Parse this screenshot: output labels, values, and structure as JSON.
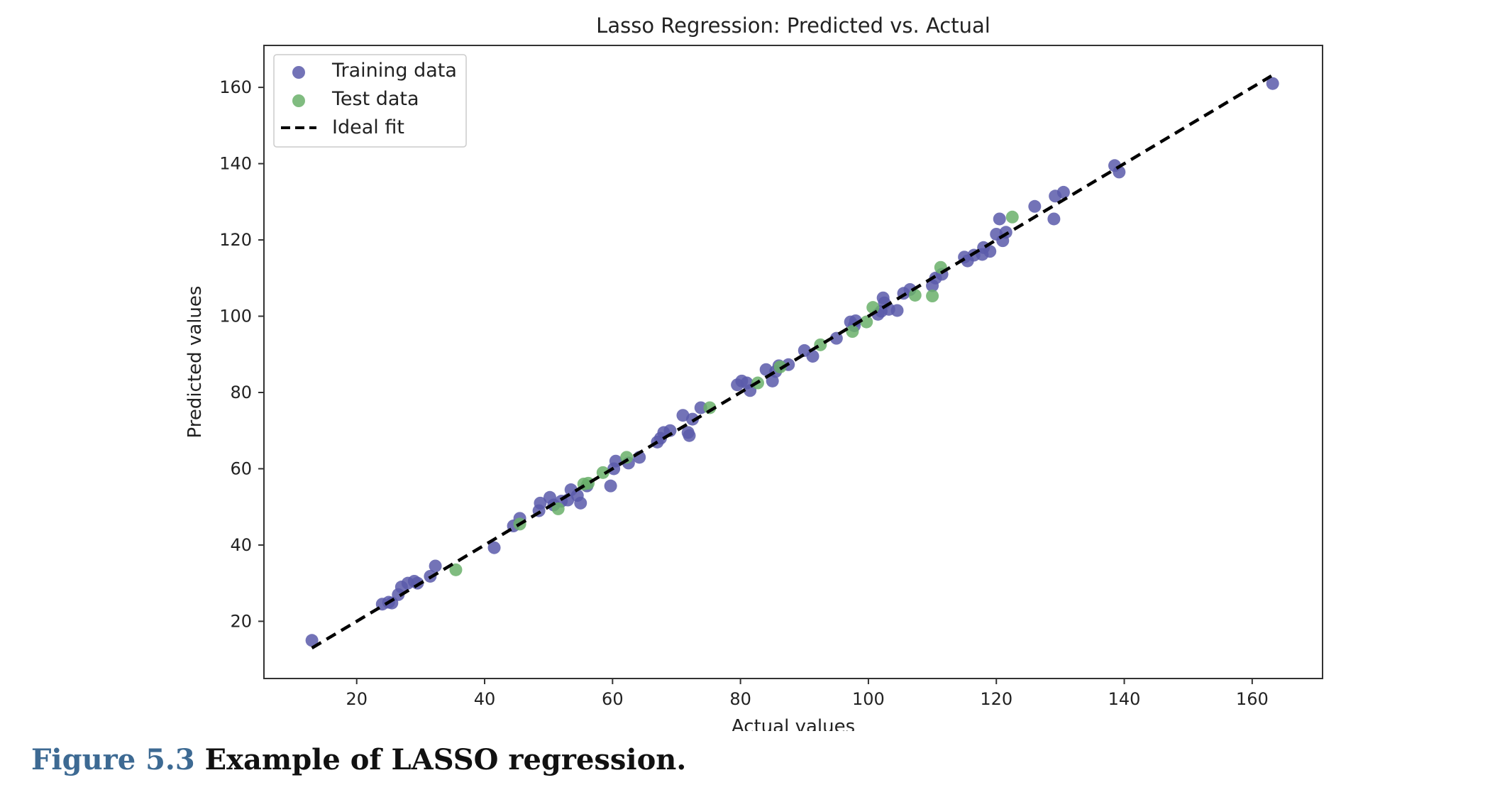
{
  "chart_data": {
    "type": "scatter",
    "title": "Lasso Regression: Predicted vs. Actual",
    "xlabel": "Actual values",
    "ylabel": "Predicted values",
    "xlim": [
      5.5,
      171
    ],
    "ylim": [
      5,
      171
    ],
    "xticks": [
      20,
      40,
      60,
      80,
      100,
      120,
      140,
      160
    ],
    "yticks": [
      20,
      40,
      60,
      80,
      100,
      120,
      140,
      160
    ],
    "grid": false,
    "legend_position": "top-left",
    "series": [
      {
        "name": "Training data",
        "kind": "points",
        "color": "#5a5aaa",
        "points": [
          [
            13,
            15
          ],
          [
            24,
            24.5
          ],
          [
            25,
            25
          ],
          [
            25.5,
            24.8
          ],
          [
            26.5,
            27
          ],
          [
            27,
            29
          ],
          [
            28,
            30
          ],
          [
            29,
            30.5
          ],
          [
            29.5,
            30
          ],
          [
            31.5,
            31.8
          ],
          [
            32.3,
            34.5
          ],
          [
            41.5,
            39.3
          ],
          [
            44.5,
            45
          ],
          [
            45.5,
            47
          ],
          [
            48.5,
            49
          ],
          [
            48.7,
            51
          ],
          [
            50.2,
            52.5
          ],
          [
            50.8,
            50.5
          ],
          [
            52,
            51.5
          ],
          [
            53,
            51.8
          ],
          [
            53.5,
            54.5
          ],
          [
            54.5,
            53
          ],
          [
            55,
            51
          ],
          [
            56,
            55.5
          ],
          [
            59.7,
            55.5
          ],
          [
            60.2,
            60
          ],
          [
            60.5,
            62
          ],
          [
            62.5,
            61.5
          ],
          [
            64.2,
            63
          ],
          [
            67,
            67
          ],
          [
            67.5,
            68
          ],
          [
            68,
            69.5
          ],
          [
            69,
            70
          ],
          [
            71,
            74
          ],
          [
            71.8,
            69.5
          ],
          [
            72,
            68.7
          ],
          [
            72.5,
            73
          ],
          [
            73.8,
            76
          ],
          [
            79.5,
            82
          ],
          [
            80.2,
            83
          ],
          [
            81,
            82.5
          ],
          [
            81.5,
            80.5
          ],
          [
            84,
            86
          ],
          [
            85,
            83
          ],
          [
            85.5,
            85.5
          ],
          [
            86,
            87
          ],
          [
            87.5,
            87.3
          ],
          [
            90,
            91
          ],
          [
            91.3,
            89.5
          ],
          [
            95,
            94.2
          ],
          [
            97.2,
            98.5
          ],
          [
            97.8,
            97.5
          ],
          [
            98,
            98.8
          ],
          [
            101.5,
            100.5
          ],
          [
            102,
            101.3
          ],
          [
            102.3,
            104.8
          ],
          [
            102.5,
            103.5
          ],
          [
            103.2,
            101.8
          ],
          [
            104.5,
            101.5
          ],
          [
            105.5,
            106
          ],
          [
            106.5,
            107
          ],
          [
            110,
            108
          ],
          [
            110.5,
            110
          ],
          [
            111.5,
            111
          ],
          [
            115,
            115.5
          ],
          [
            115.5,
            114.5
          ],
          [
            116.5,
            116
          ],
          [
            117.8,
            116.2
          ],
          [
            118,
            118
          ],
          [
            119,
            117
          ],
          [
            120,
            121.5
          ],
          [
            120.5,
            125.5
          ],
          [
            121,
            119.8
          ],
          [
            121.5,
            122
          ],
          [
            126,
            128.8
          ],
          [
            129,
            125.5
          ],
          [
            129.2,
            131.5
          ],
          [
            130.5,
            132.5
          ],
          [
            138.5,
            139.5
          ],
          [
            139.2,
            137.8
          ],
          [
            163.2,
            161
          ]
        ]
      },
      {
        "name": "Test data",
        "kind": "points",
        "color": "#6ab06a",
        "points": [
          [
            35.5,
            33.5
          ],
          [
            45.5,
            45.5
          ],
          [
            51.5,
            49.5
          ],
          [
            55.5,
            56
          ],
          [
            56.2,
            56.2
          ],
          [
            58.5,
            59
          ],
          [
            62.2,
            63
          ],
          [
            75.2,
            76
          ],
          [
            82.7,
            82.5
          ],
          [
            86.2,
            86.7
          ],
          [
            92.5,
            92.5
          ],
          [
            97.5,
            96
          ],
          [
            99.7,
            98.5
          ],
          [
            100.7,
            102.3
          ],
          [
            107.3,
            105.5
          ],
          [
            110,
            105.3
          ],
          [
            111.3,
            112.8
          ],
          [
            122.5,
            126
          ]
        ]
      },
      {
        "name": "Ideal fit",
        "kind": "line",
        "style": "dashed",
        "color": "#000000",
        "points": [
          [
            13,
            13
          ],
          [
            163,
            163
          ]
        ]
      }
    ]
  },
  "caption": {
    "number": "Figure 5.3",
    "text": "Example of LASSO regression."
  }
}
